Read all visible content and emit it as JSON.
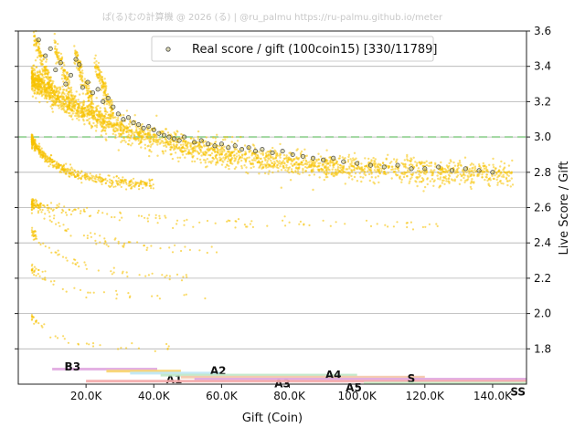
{
  "credit": "ぱ(る)むの計算機 @ 2026 (る) | @ru_palmu  https://ru-palmu.github.io/meter",
  "chart_data": {
    "type": "scatter",
    "title": "",
    "xlabel": "Gift (Coin)",
    "ylabel": "Live Score / Gift",
    "xlim": [
      0,
      150000
    ],
    "ylim": [
      1.6,
      3.6
    ],
    "x_ticks": [
      20000,
      40000,
      60000,
      80000,
      100000,
      120000,
      140000
    ],
    "x_tick_labels": [
      "20.0K",
      "40.0K",
      "60.0K",
      "80.0K",
      "100.0K",
      "120.0K",
      "140.0K"
    ],
    "y_ticks": [
      1.8,
      2.0,
      2.2,
      2.4,
      2.6,
      2.8,
      3.0,
      3.2,
      3.4,
      3.6
    ],
    "y_tick_labels": [
      "1.8",
      "2.0",
      "2.2",
      "2.4",
      "2.6",
      "2.8",
      "3.0",
      "3.2",
      "3.4",
      "3.6"
    ],
    "y_axis_side": "right",
    "grid": "horizontal",
    "reference_line": {
      "y": 3.0,
      "style": "dashed",
      "color": "#9ed69e"
    },
    "legend": {
      "label": "Real score / gift (100coin15) [330/11789]",
      "placement": "top-center"
    },
    "series": [
      {
        "name": "Real score / gift (100coin15) [330/11789]",
        "highlight_color": "#b8b26a",
        "points": [
          [
            6000,
            3.55
          ],
          [
            8000,
            3.46
          ],
          [
            9500,
            3.5
          ],
          [
            11000,
            3.38
          ],
          [
            12500,
            3.42
          ],
          [
            14000,
            3.3
          ],
          [
            15500,
            3.35
          ],
          [
            17000,
            3.44
          ],
          [
            18000,
            3.41
          ],
          [
            19000,
            3.28
          ],
          [
            20500,
            3.31
          ],
          [
            22000,
            3.25
          ],
          [
            23500,
            3.27
          ],
          [
            25000,
            3.2
          ],
          [
            26500,
            3.22
          ],
          [
            28000,
            3.17
          ],
          [
            29500,
            3.13
          ],
          [
            31000,
            3.1
          ],
          [
            32500,
            3.11
          ],
          [
            34000,
            3.08
          ],
          [
            35500,
            3.07
          ],
          [
            37000,
            3.05
          ],
          [
            38500,
            3.06
          ],
          [
            40000,
            3.04
          ],
          [
            41500,
            3.02
          ],
          [
            43000,
            3.01
          ],
          [
            44500,
            3.0
          ],
          [
            46000,
            2.99
          ],
          [
            47500,
            2.98
          ],
          [
            49000,
            3.0
          ],
          [
            52000,
            2.97
          ],
          [
            54000,
            2.98
          ],
          [
            56000,
            2.96
          ],
          [
            58000,
            2.95
          ],
          [
            60000,
            2.96
          ],
          [
            62000,
            2.94
          ],
          [
            64000,
            2.95
          ],
          [
            66000,
            2.93
          ],
          [
            68000,
            2.94
          ],
          [
            70000,
            2.92
          ],
          [
            72000,
            2.93
          ],
          [
            75000,
            2.91
          ],
          [
            78000,
            2.92
          ],
          [
            81000,
            2.9
          ],
          [
            84000,
            2.89
          ],
          [
            87000,
            2.88
          ],
          [
            90000,
            2.87
          ],
          [
            93000,
            2.88
          ],
          [
            96000,
            2.86
          ],
          [
            100000,
            2.85
          ],
          [
            104000,
            2.84
          ],
          [
            108000,
            2.83
          ],
          [
            112000,
            2.84
          ],
          [
            116000,
            2.82
          ],
          [
            120000,
            2.82
          ],
          [
            124000,
            2.83
          ],
          [
            128000,
            2.81
          ],
          [
            132000,
            2.82
          ],
          [
            136000,
            2.81
          ],
          [
            140000,
            2.8
          ]
        ]
      }
    ],
    "data_point_color": "#f7c200",
    "rank_bars": [
      {
        "label": "B3",
        "color": "#e0a8e0",
        "x_start": 10000,
        "x_end": 41000,
        "x_label": 16000
      },
      {
        "label": "A1",
        "color": "#f7d36b",
        "x_start": 26000,
        "x_end": 48000,
        "x_label": 46000
      },
      {
        "label": "A2",
        "color": "#bde6f5",
        "x_start": 33000,
        "x_end": 60000,
        "x_label": 59000
      },
      {
        "label": "A3",
        "color": "#bfe8c8",
        "x_start": 42000,
        "x_end": 100000,
        "x_label": 78000
      },
      {
        "label": "A4",
        "color": "#f4c7a8",
        "x_start": 48000,
        "x_end": 120000,
        "x_label": 93000
      },
      {
        "label": "A5",
        "color": "#e0a8e0",
        "x_start": 52000,
        "x_end": 150000,
        "x_label": 99000
      },
      {
        "label": "S",
        "color": "#f4a8a8",
        "x_start": 20000,
        "x_end": 150000,
        "x_label": 116000
      },
      {
        "label": "SS",
        "color": "#c8f0c8",
        "x_start": 102000,
        "x_end": 150000,
        "x_label": 147500
      }
    ]
  }
}
